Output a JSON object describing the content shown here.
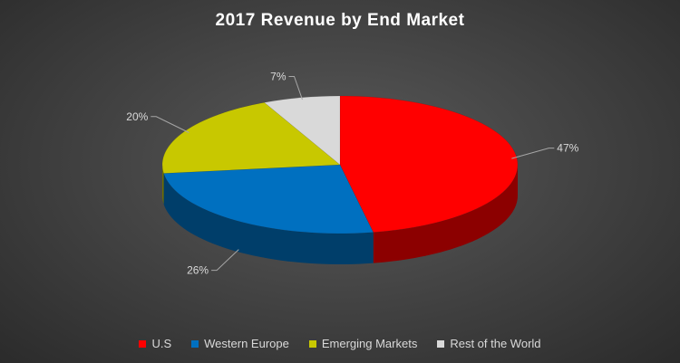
{
  "chart_data": {
    "type": "pie",
    "title": "2017 Revenue by End Market",
    "categories": [
      "U.S",
      "Western Europe",
      "Emerging Markets",
      "Rest of the World"
    ],
    "values": [
      47,
      26,
      20,
      7
    ],
    "labels": [
      "47%",
      "26%",
      "20%",
      "7%"
    ],
    "colors": [
      "#ff0000",
      "#0070c0",
      "#c8c800",
      "#d9d9d9"
    ],
    "style": "3d",
    "legend_position": "bottom"
  }
}
